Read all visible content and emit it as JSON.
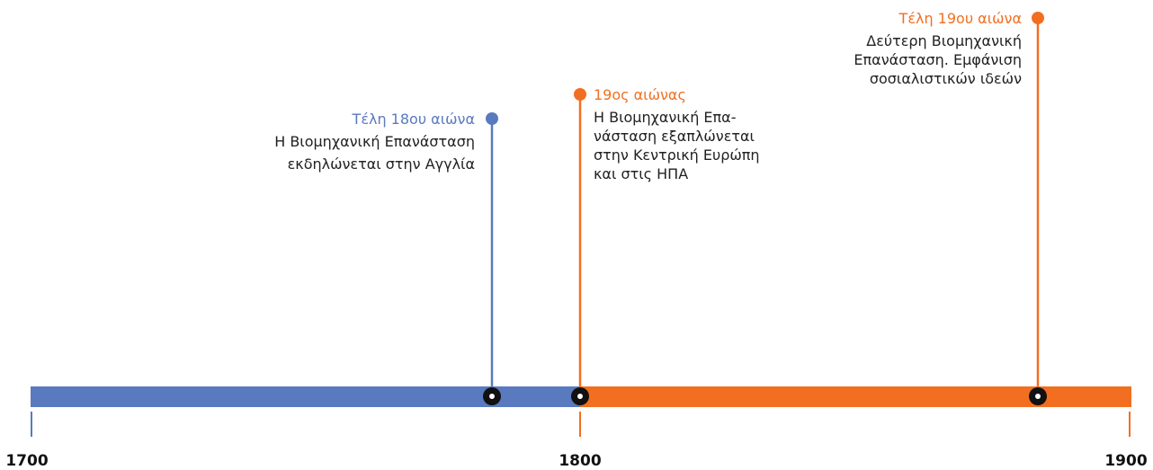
{
  "axis": {
    "labels": [
      "1700",
      "1800",
      "1900"
    ]
  },
  "events": [
    {
      "title": "Τέλη 18ου αιώνα",
      "lines": [
        "Η Βιομηχανική Επανάσταση",
        "εκδηλώνεται στην Αγγλία"
      ]
    },
    {
      "title": "19ος αιώνας",
      "lines": [
        "Η Βιομηχανική Επα-",
        "νάσταση εξαπλώνεται",
        "στην Κεντρική Ευρώπη",
        "και στις ΗΠΑ"
      ]
    },
    {
      "title": "Τέλη 19ου αιώνα",
      "lines": [
        "Δεύτερη Βιομηχανική",
        "Επανάσταση. Εμφάνιση",
        "σοσιαλιστικών ιδεών"
      ]
    }
  ]
}
